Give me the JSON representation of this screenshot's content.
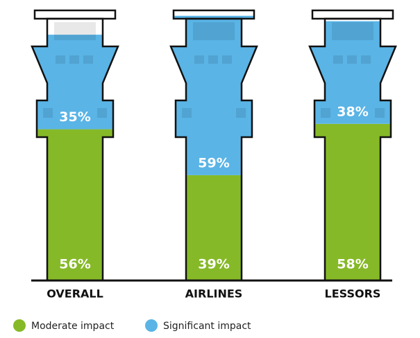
{
  "chart_data": {
    "type": "tower-stack",
    "categories": [
      "OVERALL",
      "AIRLINES",
      "LESSORS"
    ],
    "series": [
      {
        "name": "Moderate impact",
        "color": "#86b928",
        "values": [
          56,
          39,
          58
        ],
        "value_labels": [
          "56%",
          "39%",
          "58%"
        ]
      },
      {
        "name": "Significant impact",
        "color": "#5ab4e6",
        "values": [
          35,
          59,
          38
        ],
        "value_labels": [
          "35%",
          "59%",
          "38%"
        ]
      }
    ],
    "ylim": [
      0,
      100
    ]
  }
}
